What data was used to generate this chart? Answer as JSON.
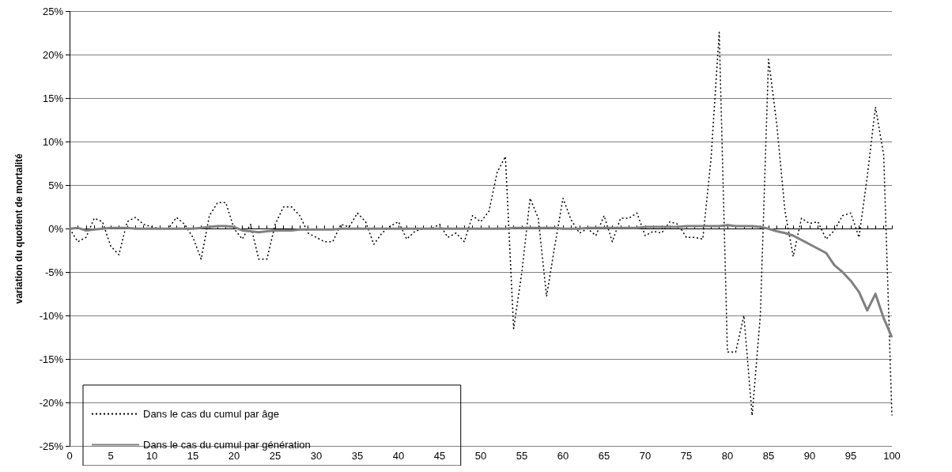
{
  "chart_data": {
    "type": "line",
    "ylabel": "variation du quotient de mortalité",
    "x": [
      0,
      1,
      2,
      3,
      4,
      5,
      6,
      7,
      8,
      9,
      10,
      11,
      12,
      13,
      14,
      15,
      16,
      17,
      18,
      19,
      20,
      21,
      22,
      23,
      24,
      25,
      26,
      27,
      28,
      29,
      30,
      31,
      32,
      33,
      34,
      35,
      36,
      37,
      38,
      39,
      40,
      41,
      42,
      43,
      44,
      45,
      46,
      47,
      48,
      49,
      50,
      51,
      52,
      53,
      54,
      55,
      56,
      57,
      58,
      59,
      60,
      61,
      62,
      63,
      64,
      65,
      66,
      67,
      68,
      69,
      70,
      71,
      72,
      73,
      74,
      75,
      76,
      77,
      78,
      79,
      80,
      81,
      82,
      83,
      84,
      85,
      86,
      87,
      88,
      89,
      90,
      91,
      92,
      93,
      94,
      95,
      96,
      97,
      98,
      99,
      100
    ],
    "series": [
      {
        "name": "Dans le cas du cumul par âge",
        "color": "#000000",
        "line_style": "dotted",
        "values": [
          0,
          -1.5,
          -1,
          1.2,
          0.8,
          -2,
          -3,
          0.8,
          1.3,
          0.5,
          0.2,
          0,
          0,
          1.3,
          0.5,
          -1,
          -3.5,
          1.5,
          3,
          3,
          0,
          -1.2,
          0.5,
          -3.5,
          -3.5,
          0.5,
          2.5,
          2.5,
          1.5,
          -0.5,
          -1,
          -1.5,
          -1.5,
          0.5,
          0.2,
          1.8,
          0.8,
          -1.8,
          -0.5,
          0.3,
          0.8,
          -1.2,
          -0.3,
          0,
          0,
          0.5,
          -1,
          -0.5,
          -1.5,
          1.5,
          0.8,
          2,
          6.5,
          8.3,
          -11.5,
          -5,
          3.5,
          1.2,
          -7.8,
          -2,
          3.5,
          1,
          -0.5,
          0,
          -0.8,
          1.5,
          -1.5,
          1.2,
          1.2,
          1.8,
          -0.8,
          -0.3,
          -0.5,
          0.8,
          0.5,
          -1,
          -1,
          -1.2,
          8,
          22.6,
          -14.2,
          -14.2,
          -10,
          -21.5,
          -10,
          19.5,
          12,
          2,
          -3.2,
          1.2,
          0.6,
          0.8,
          -1.2,
          -0.2,
          1.5,
          1.8,
          -1,
          6,
          14,
          8.5,
          -21.5
        ]
      },
      {
        "name": "Dans le cas du cumul par génération",
        "color": "#808080",
        "line_style": "solid",
        "values": [
          0,
          0.1,
          -0.2,
          -0.1,
          0,
          0.1,
          0.1,
          0.1,
          0,
          0,
          0,
          0,
          0,
          0,
          0,
          0,
          0.1,
          0.2,
          0.3,
          0.3,
          0.2,
          -0.2,
          -0.3,
          -0.4,
          -0.3,
          -0.2,
          -0.2,
          -0.2,
          -0.1,
          -0.1,
          -0.1,
          -0.1,
          -0.1,
          0,
          0,
          0,
          0,
          0,
          0,
          0,
          0,
          0,
          0,
          0,
          0,
          0,
          0,
          0,
          0,
          0,
          0,
          0,
          0,
          0,
          0.1,
          0.1,
          0.1,
          0.1,
          0.1,
          0.1,
          0,
          0,
          0,
          0.1,
          0.1,
          0.1,
          0.1,
          0.1,
          0.1,
          0.1,
          0.2,
          0.2,
          0.2,
          0.2,
          0.2,
          0.3,
          0.3,
          0.3,
          0.3,
          0.3,
          0.4,
          0.3,
          0.3,
          0.3,
          0.2,
          0,
          -0.3,
          -0.5,
          -0.8,
          -1.3,
          -1.8,
          -2.3,
          -2.8,
          -4.2,
          -5,
          -6,
          -7.3,
          -9.4,
          -7.5,
          -10.3,
          -12.5
        ]
      }
    ],
    "xlim": [
      0,
      100
    ],
    "xticks": [
      0,
      5,
      10,
      15,
      20,
      25,
      30,
      35,
      40,
      45,
      50,
      55,
      60,
      65,
      70,
      75,
      80,
      85,
      90,
      95,
      100
    ],
    "ylim": [
      -25,
      25
    ],
    "yticks": [
      {
        "value": -25,
        "label": "-25%"
      },
      {
        "value": -20,
        "label": "-20%"
      },
      {
        "value": -15,
        "label": "-15%"
      },
      {
        "value": -10,
        "label": "-10%"
      },
      {
        "value": -5,
        "label": "-5%"
      },
      {
        "value": 0,
        "label": "0%"
      },
      {
        "value": 5,
        "label": "5%"
      },
      {
        "value": 10,
        "label": "10%"
      },
      {
        "value": 15,
        "label": "15%"
      },
      {
        "value": 20,
        "label": "20%"
      },
      {
        "value": 25,
        "label": "25%"
      }
    ],
    "grid": "y",
    "legend": "bottom left",
    "marker": "none"
  }
}
